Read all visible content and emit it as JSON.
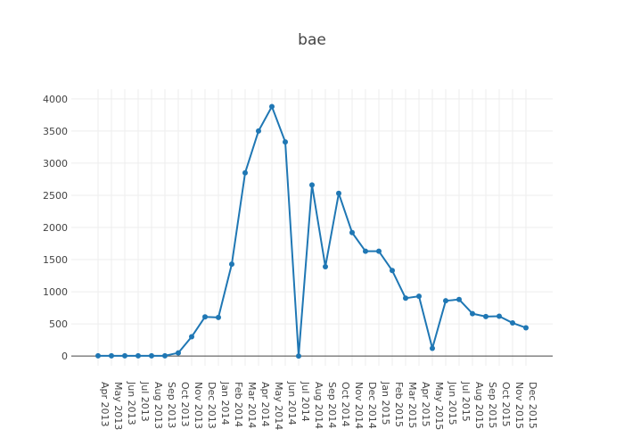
{
  "chart_data": {
    "type": "line",
    "title": "bae",
    "xlabel": "",
    "ylabel": "",
    "x": [
      "Apr 2013",
      "May 2013",
      "Jun 2013",
      "Jul 2013",
      "Aug 2013",
      "Sep 2013",
      "Oct 2013",
      "Nov 2013",
      "Dec 2013",
      "Jan 2014",
      "Feb 2014",
      "Mar 2014",
      "Apr 2014",
      "May 2014",
      "Jun 2014",
      "Jul 2014",
      "Aug 2014",
      "Sep 2014",
      "Oct 2014",
      "Nov 2014",
      "Dec 2014",
      "Jan 2015",
      "Feb 2015",
      "Mar 2015",
      "Apr 2015",
      "May 2015",
      "Jun 2015",
      "Jul 2015",
      "Aug 2015",
      "Sep 2015",
      "Oct 2015",
      "Nov 2015",
      "Dec 2015"
    ],
    "series": [
      {
        "values": [
          5,
          5,
          5,
          5,
          5,
          5,
          50,
          300,
          610,
          600,
          1430,
          2850,
          3500,
          3880,
          3330,
          0,
          2660,
          1390,
          2530,
          1920,
          1630,
          1630,
          1330,
          900,
          930,
          120,
          860,
          880,
          660,
          615,
          620,
          515,
          440
        ],
        "color": "#1f77b4"
      }
    ],
    "yticks": [
      0,
      500,
      1000,
      1500,
      2000,
      2500,
      3000,
      3500,
      4000
    ],
    "ylim": [
      -150,
      4150
    ],
    "grid": true,
    "legend": "none",
    "colors": {
      "zero_line": "#444444",
      "grid": "#eeeeee",
      "text": "#444444"
    }
  }
}
